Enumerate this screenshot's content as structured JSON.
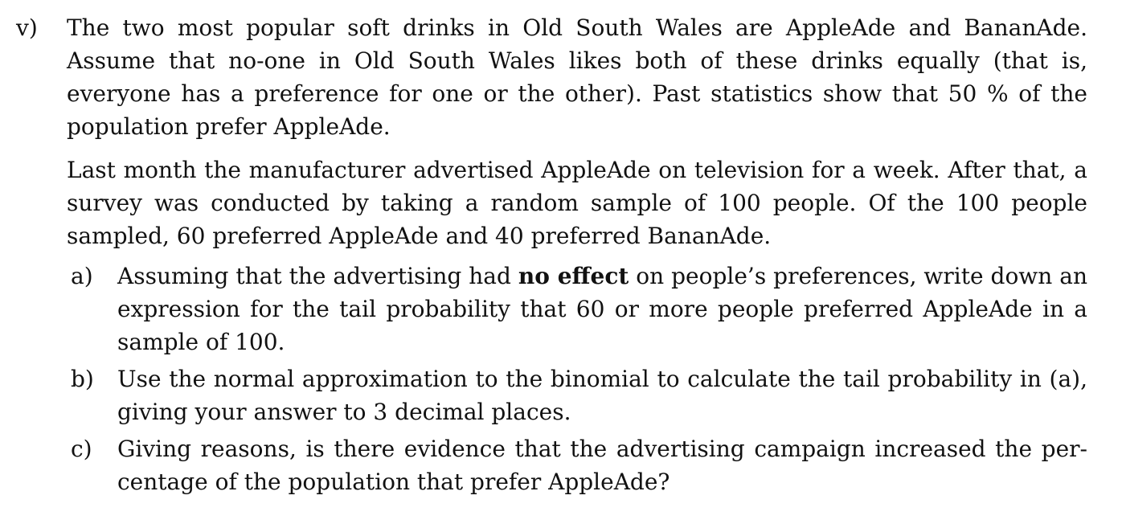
{
  "question": {
    "number": "v)",
    "paragraph1": "The two most popular soft drinks in Old South Wales are AppleAde and BananAde. Assume that no-one in Old South Wales likes both of these drinks equally (that is, everyone has a preference for one or the other). Past statistics show that 50 % of the population prefer AppleAde.",
    "paragraph2": "Last month the manufacturer advertised AppleAde on television for a week. After that, a survey was conducted by taking a random sample of 100 people. Of the 100 people sampled, 60 preferred AppleAde and 40 preferred BananAde.",
    "parts": [
      {
        "label": "a)",
        "text_before": "Assuming that the advertising had ",
        "bold": "no effect",
        "text_after": " on people’s preferences, write down an expression for the tail probability that 60 or more people preferred AppleAde in a sample of 100."
      },
      {
        "label": "b)",
        "text": "Use the normal approximation to the binomial to calculate the tail probability in (a), giving your answer to 3 decimal places."
      },
      {
        "label": "c)",
        "text": "Giving reasons, is there evidence that the advertising campaign increased the per- centage of the population that prefer AppleAde?"
      }
    ]
  }
}
